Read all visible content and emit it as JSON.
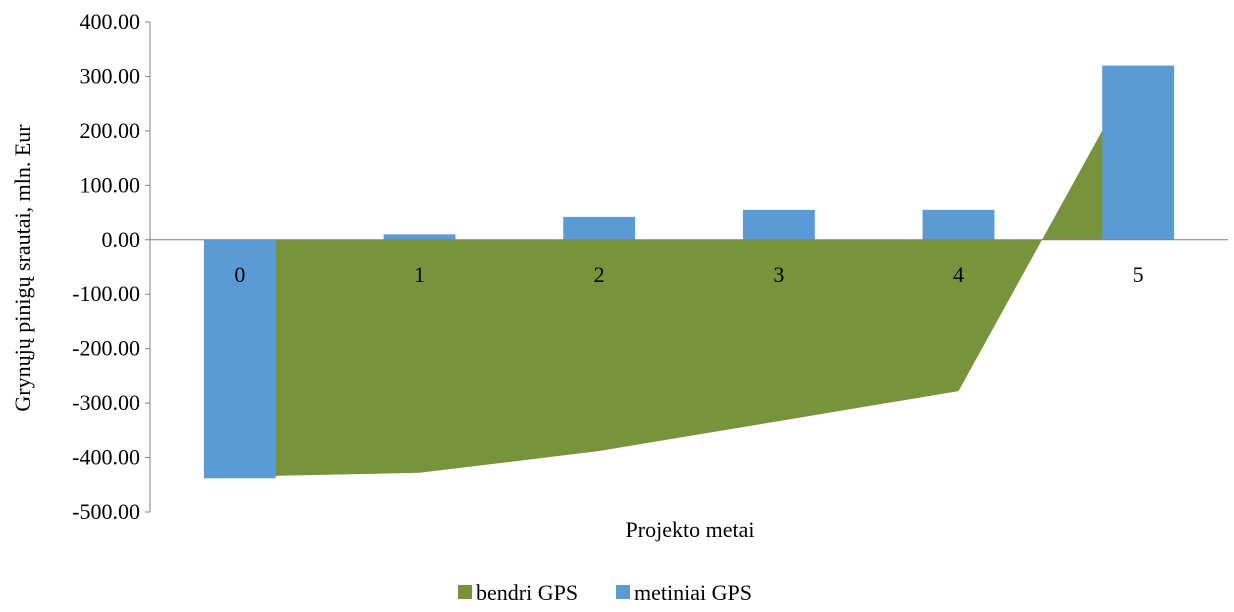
{
  "chart_data": {
    "type": "bar",
    "categories": [
      "0",
      "1",
      "2",
      "3",
      "4",
      "5"
    ],
    "series": [
      {
        "name": "bendri GPS",
        "render": "area",
        "color": "#77933C",
        "values": [
          -435,
          -428,
          -388,
          -333,
          -278,
          320
        ]
      },
      {
        "name": "metiniai GPS",
        "render": "bar",
        "color": "#5B9BD5",
        "values": [
          -438,
          10,
          42,
          55,
          55,
          320
        ]
      }
    ],
    "title": "",
    "xlabel": "Projekto metai",
    "ylabel": "Grynųjų pinigų srautai, mln. Eur",
    "ylim": [
      -500,
      400
    ],
    "yticks": [
      "400.00",
      "300.00",
      "200.00",
      "100.00",
      "0.00",
      "-100.00",
      "-200.00",
      "-300.00",
      "-400.00",
      "-500.00"
    ],
    "grid": false,
    "legend": "bottom"
  }
}
